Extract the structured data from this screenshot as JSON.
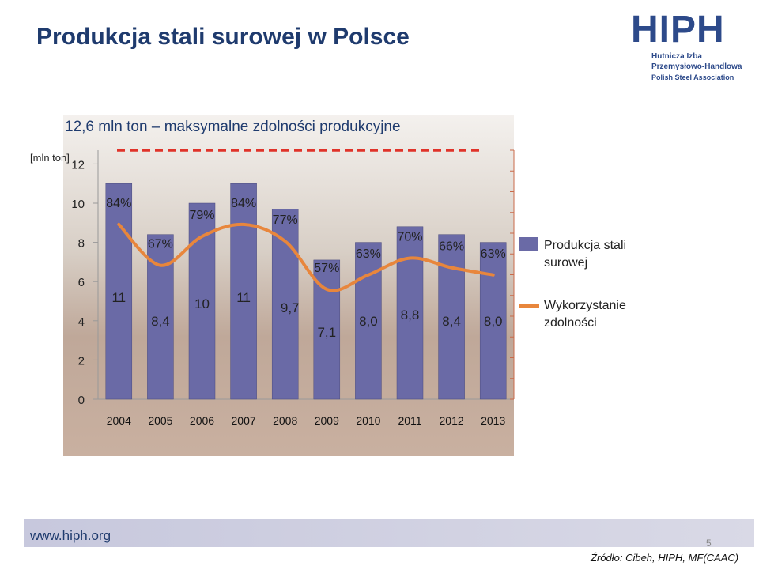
{
  "slide": {
    "title": "Produkcja stali surowej w Polsce",
    "footer_url": "www.hiph.org",
    "page_number": "5",
    "source": "Źródło: Cibeh, HIPH, MF(CAAC)"
  },
  "logo": {
    "main": "HIPH",
    "line1": "Hutnicza Izba",
    "line2": "Przemysłowo-Handlowa",
    "line3": "Polish Steel Association"
  },
  "chart_labels": {
    "capacity": "12,6 mln ton – maksymalne zdolności produkcyjne",
    "unit": "[mln ton]"
  },
  "legend": {
    "production": "Produkcja stali surowej",
    "utilization": "Wykorzystanie zdolności"
  },
  "colors": {
    "bars": "#6a6aa6",
    "utilization_line": "#e8863c",
    "capacity_line": "#e0332a"
  },
  "chart_data": {
    "type": "bar",
    "categories": [
      "2004",
      "2005",
      "2006",
      "2007",
      "2008",
      "2009",
      "2010",
      "2011",
      "2012",
      "2013"
    ],
    "series": [
      {
        "name": "Produkcja stali surowej",
        "values": [
          11,
          8.4,
          10,
          11,
          9.7,
          7.1,
          8.0,
          8.8,
          8.4,
          8.0
        ],
        "value_labels": [
          "11",
          "8,4",
          "10",
          "11",
          "9,7",
          "7,1",
          "8,0",
          "8,8",
          "8,4",
          "8,0"
        ]
      },
      {
        "name": "Wykorzystanie zdolności",
        "type": "line",
        "values": [
          84,
          67,
          79,
          84,
          77,
          57,
          63,
          70,
          66,
          63
        ],
        "value_labels": [
          "84%",
          "67%",
          "79%",
          "84%",
          "77%",
          "57%",
          "63%",
          "70%",
          "66%",
          "63%"
        ]
      }
    ],
    "capacity_line": 12.6,
    "ylim": [
      0,
      12.6
    ],
    "yticks": [
      0,
      2,
      4,
      6,
      8,
      10,
      12
    ],
    "ylabel": "[mln ton]",
    "legend_position": "right"
  }
}
